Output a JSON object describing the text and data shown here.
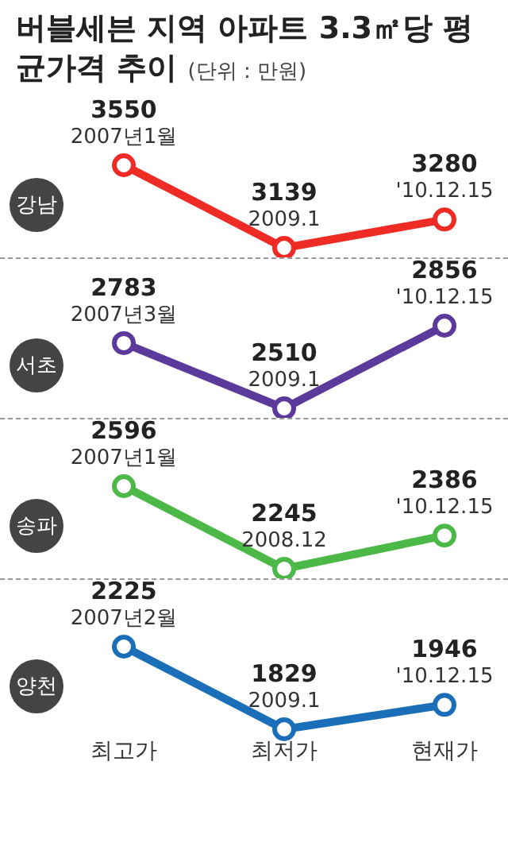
{
  "chart_data": [
    {
      "type": "line",
      "title": "버블세븐 지역 아파트 3.3㎡당 평균가격 추이",
      "subtitle": "(단위 : 만원)",
      "categories": [
        "최고가",
        "최저가",
        "현재가"
      ],
      "series": [
        {
          "name": "강남",
          "color": "#ee2b24",
          "values": [
            3550,
            3139,
            3280
          ]
        }
      ],
      "data_labels": true,
      "marker": "circle",
      "line_style": "solid",
      "grid": false,
      "tick_labels": false,
      "annotations": [
        {
          "text": "2007년1월",
          "x": "최고가",
          "y": 3550
        },
        {
          "text": "2009.1",
          "x": "최저가",
          "y": 3139
        },
        {
          "text": "'10.12.15",
          "x": "현재가",
          "y": 3280
        }
      ]
    },
    {
      "type": "line",
      "categories": [
        "최고가",
        "최저가",
        "현재가"
      ],
      "series": [
        {
          "name": "서초",
          "color": "#5b3a9b",
          "values": [
            2783,
            2510,
            2856
          ]
        }
      ],
      "data_labels": true,
      "marker": "circle",
      "line_style": "solid",
      "grid": false,
      "tick_labels": false,
      "annotations": [
        {
          "text": "2007년3월",
          "x": "최고가",
          "y": 2783
        },
        {
          "text": "2009.1",
          "x": "최저가",
          "y": 2510
        },
        {
          "text": "'10.12.15",
          "x": "현재가",
          "y": 2856
        }
      ]
    },
    {
      "type": "line",
      "categories": [
        "최고가",
        "최저가",
        "현재가"
      ],
      "series": [
        {
          "name": "송파",
          "color": "#4cb848",
          "values": [
            2596,
            2245,
            2386
          ]
        }
      ],
      "data_labels": true,
      "marker": "circle",
      "line_style": "solid",
      "grid": false,
      "tick_labels": false,
      "annotations": [
        {
          "text": "2007년1월",
          "x": "최고가",
          "y": 2596
        },
        {
          "text": "2008.12",
          "x": "최저가",
          "y": 2245
        },
        {
          "text": "'10.12.15",
          "x": "현재가",
          "y": 2386
        }
      ]
    },
    {
      "type": "line",
      "categories": [
        "최고가",
        "최저가",
        "현재가"
      ],
      "series": [
        {
          "name": "양천",
          "color": "#1b6fb8",
          "values": [
            2225,
            1829,
            1946
          ]
        }
      ],
      "data_labels": true,
      "marker": "circle",
      "line_style": "solid",
      "grid": false,
      "tick_labels": "x",
      "annotations": [
        {
          "text": "2007년2월",
          "x": "최고가",
          "y": 2225
        },
        {
          "text": "2009.1",
          "x": "최저가",
          "y": 1829
        },
        {
          "text": "'10.12.15",
          "x": "현재가",
          "y": 1946
        }
      ]
    }
  ]
}
